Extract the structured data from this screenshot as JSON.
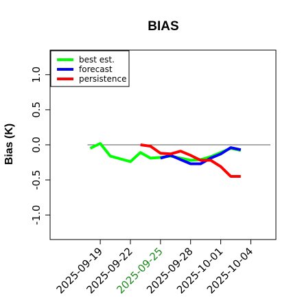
{
  "chart_data": {
    "type": "line",
    "title": "BIAS",
    "ylabel": "Bias (K)",
    "xlabel": "",
    "ylim": [
      -1.35,
      1.35
    ],
    "xlim": [
      "2025-09-14T00:00",
      "2025-10-06T12:00"
    ],
    "yticks": [
      -1.0,
      -0.5,
      0.0,
      0.5,
      1.0
    ],
    "ytick_labels": [
      "-1.0",
      "-0.5",
      "0.0",
      "0.5",
      "1.0"
    ],
    "xticks": [
      "2025-09-19",
      "2025-09-22",
      "2025-09-25",
      "2025-09-28",
      "2025-10-01",
      "2025-10-04"
    ],
    "xtick_labels": [
      "2025-09-19",
      "2025-09-22",
      "2025-09-25",
      "2025-09-28",
      "2025-10-01",
      "2025-10-04"
    ],
    "xtick_colors": [
      "#000000",
      "#000000",
      "#1a8a1a",
      "#000000",
      "#000000",
      "#000000"
    ],
    "reference_line": 0,
    "grid": false,
    "legend_position": "top-left",
    "series": [
      {
        "name": "best est.",
        "color": "#00ff00",
        "x": [
          "2025-09-18",
          "2025-09-19",
          "2025-09-20",
          "2025-09-22",
          "2025-09-23",
          "2025-09-24",
          "2025-09-25",
          "2025-09-26",
          "2025-09-27",
          "2025-09-28",
          "2025-09-29",
          "2025-09-30",
          "2025-10-01",
          "2025-10-02",
          "2025-10-03"
        ],
        "values": [
          -0.05,
          0.02,
          -0.16,
          -0.24,
          -0.11,
          -0.19,
          -0.18,
          -0.16,
          -0.19,
          -0.22,
          -0.21,
          -0.17,
          -0.11,
          -0.05,
          -0.08
        ]
      },
      {
        "name": "forecast",
        "color": "#0000ff",
        "x": [
          "2025-09-25",
          "2025-09-26",
          "2025-09-27",
          "2025-09-28",
          "2025-09-29",
          "2025-09-30",
          "2025-10-01",
          "2025-10-02",
          "2025-10-03"
        ],
        "values": [
          -0.19,
          -0.15,
          -0.21,
          -0.27,
          -0.27,
          -0.19,
          -0.13,
          -0.04,
          -0.07
        ]
      },
      {
        "name": "persistence",
        "color": "#ff0000",
        "x": [
          "2025-09-23",
          "2025-09-24",
          "2025-09-25",
          "2025-09-26",
          "2025-09-27",
          "2025-09-28",
          "2025-09-29",
          "2025-09-30",
          "2025-10-01",
          "2025-10-02",
          "2025-10-03"
        ],
        "values": [
          0.0,
          -0.02,
          -0.12,
          -0.13,
          -0.09,
          -0.15,
          -0.22,
          -0.22,
          -0.31,
          -0.45,
          -0.45
        ]
      }
    ]
  }
}
